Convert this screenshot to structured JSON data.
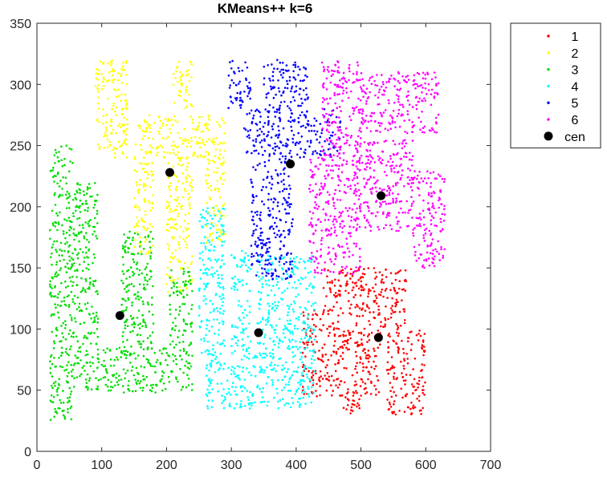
{
  "chart_data": {
    "type": "scatter",
    "title": "KMeans++ k=6",
    "xlabel": "",
    "ylabel": "",
    "xlim": [
      0,
      700
    ],
    "ylim": [
      0,
      350
    ],
    "xticks": [
      0,
      100,
      200,
      300,
      400,
      500,
      600,
      700
    ],
    "yticks": [
      0,
      50,
      100,
      150,
      200,
      250,
      300,
      350
    ],
    "grid": false,
    "legend_position": "outside-top-right",
    "series": [
      {
        "name": "1",
        "color": "#ff0000",
        "marker": "dot",
        "regions": [
          [
            440,
            530,
            45,
            150
          ],
          [
            410,
            440,
            45,
            120
          ],
          [
            530,
            570,
            100,
            150
          ],
          [
            470,
            500,
            30,
            45
          ],
          [
            540,
            600,
            30,
            100
          ]
        ]
      },
      {
        "name": "2",
        "color": "#ffff00",
        "marker": "dot",
        "regions": [
          [
            150,
            290,
            240,
            275
          ],
          [
            150,
            180,
            160,
            240
          ],
          [
            200,
            240,
            130,
            240
          ],
          [
            260,
            290,
            170,
            240
          ],
          [
            90,
            140,
            240,
            320
          ],
          [
            210,
            240,
            280,
            320
          ]
        ]
      },
      {
        "name": "3",
        "color": "#00dd00",
        "marker": "dot",
        "regions": [
          [
            55,
            95,
            50,
            220
          ],
          [
            95,
            240,
            48,
            85
          ],
          [
            130,
            180,
            85,
            180
          ],
          [
            205,
            240,
            85,
            150
          ],
          [
            20,
            55,
            25,
            250
          ]
        ]
      },
      {
        "name": "4",
        "color": "#00ffff",
        "marker": "dot",
        "regions": [
          [
            260,
            430,
            35,
            80
          ],
          [
            300,
            330,
            80,
            165
          ],
          [
            340,
            390,
            80,
            160
          ],
          [
            250,
            290,
            80,
            200
          ],
          [
            390,
            430,
            80,
            160
          ]
        ]
      },
      {
        "name": "5",
        "color": "#0000ff",
        "marker": "dot",
        "regions": [
          [
            320,
            470,
            240,
            280
          ],
          [
            330,
            395,
            140,
            240
          ],
          [
            295,
            330,
            280,
            320
          ],
          [
            350,
            420,
            280,
            320
          ]
        ]
      },
      {
        "name": "6",
        "color": "#ff00ff",
        "marker": "dot",
        "regions": [
          [
            490,
            580,
            180,
            255
          ],
          [
            420,
            500,
            145,
            240
          ],
          [
            440,
            500,
            240,
            320
          ],
          [
            500,
            620,
            260,
            310
          ],
          [
            580,
            630,
            150,
            230
          ]
        ]
      }
    ],
    "centroids": {
      "name": "cen",
      "color": "#000000",
      "points": [
        [
          527,
          93
        ],
        [
          205,
          228
        ],
        [
          128,
          111
        ],
        [
          342,
          97
        ],
        [
          391,
          235
        ],
        [
          531,
          209
        ]
      ]
    }
  }
}
